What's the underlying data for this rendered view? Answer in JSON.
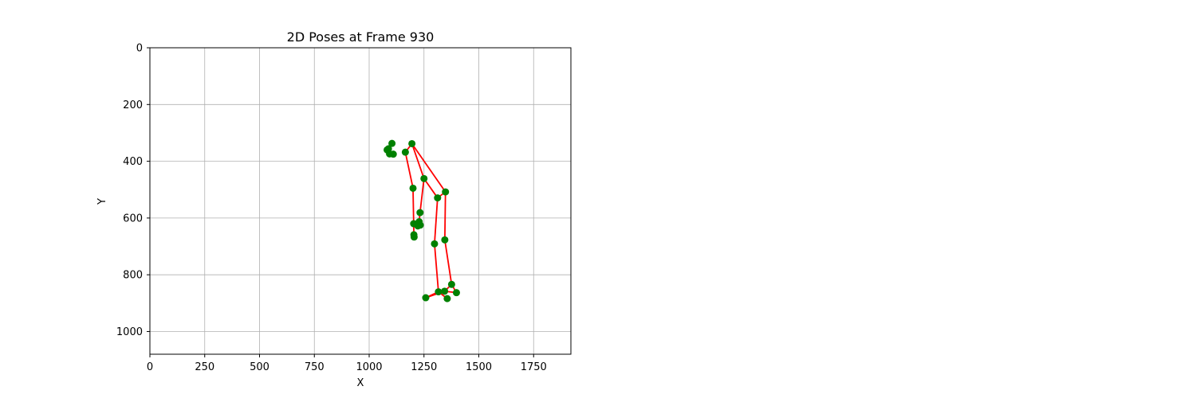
{
  "chart_data": {
    "type": "scatter",
    "title": "2D Poses at Frame 930",
    "xlabel": "X",
    "ylabel": "Y",
    "xlim": [
      0,
      1920
    ],
    "ylim": [
      1080,
      0
    ],
    "y_inverted": true,
    "grid": true,
    "x_ticks": [
      0,
      250,
      500,
      750,
      1000,
      1250,
      1500,
      1750
    ],
    "y_ticks": [
      0,
      200,
      400,
      600,
      800,
      1000
    ],
    "point_color": "#008000",
    "line_color": "#ff0000",
    "points": [
      {
        "x": 1195,
        "y": 338
      },
      {
        "x": 1104,
        "y": 337
      },
      {
        "x": 1088,
        "y": 356
      },
      {
        "x": 1082,
        "y": 360
      },
      {
        "x": 1093,
        "y": 374
      },
      {
        "x": 1110,
        "y": 375
      },
      {
        "x": 1165,
        "y": 368
      },
      {
        "x": 1250,
        "y": 461
      },
      {
        "x": 1348,
        "y": 508
      },
      {
        "x": 1312,
        "y": 529
      },
      {
        "x": 1200,
        "y": 495
      },
      {
        "x": 1232,
        "y": 581
      },
      {
        "x": 1228,
        "y": 613
      },
      {
        "x": 1233,
        "y": 625
      },
      {
        "x": 1222,
        "y": 628
      },
      {
        "x": 1203,
        "y": 620
      },
      {
        "x": 1204,
        "y": 659
      },
      {
        "x": 1205,
        "y": 667
      },
      {
        "x": 1345,
        "y": 677
      },
      {
        "x": 1298,
        "y": 691
      },
      {
        "x": 1376,
        "y": 834
      },
      {
        "x": 1398,
        "y": 863
      },
      {
        "x": 1344,
        "y": 858
      },
      {
        "x": 1316,
        "y": 860
      },
      {
        "x": 1258,
        "y": 881
      },
      {
        "x": 1356,
        "y": 884
      }
    ],
    "skeleton_segments": [
      [
        [
          1195,
          338
        ],
        [
          1165,
          368
        ]
      ],
      [
        [
          1195,
          338
        ],
        [
          1348,
          508
        ]
      ],
      [
        [
          1195,
          338
        ],
        [
          1250,
          461
        ]
      ],
      [
        [
          1165,
          368
        ],
        [
          1200,
          495
        ]
      ],
      [
        [
          1250,
          461
        ],
        [
          1232,
          581
        ]
      ],
      [
        [
          1232,
          581
        ],
        [
          1228,
          613
        ]
      ],
      [
        [
          1228,
          613
        ],
        [
          1233,
          625
        ]
      ],
      [
        [
          1200,
          495
        ],
        [
          1203,
          620
        ]
      ],
      [
        [
          1203,
          620
        ],
        [
          1204,
          659
        ]
      ],
      [
        [
          1348,
          508
        ],
        [
          1312,
          529
        ]
      ],
      [
        [
          1312,
          529
        ],
        [
          1250,
          461
        ]
      ],
      [
        [
          1348,
          508
        ],
        [
          1345,
          677
        ]
      ],
      [
        [
          1312,
          529
        ],
        [
          1298,
          691
        ]
      ],
      [
        [
          1345,
          677
        ],
        [
          1376,
          834
        ]
      ],
      [
        [
          1376,
          834
        ],
        [
          1398,
          863
        ]
      ],
      [
        [
          1398,
          863
        ],
        [
          1344,
          858
        ]
      ],
      [
        [
          1298,
          691
        ],
        [
          1316,
          860
        ]
      ],
      [
        [
          1316,
          860
        ],
        [
          1356,
          884
        ]
      ],
      [
        [
          1316,
          860
        ],
        [
          1258,
          881
        ]
      ],
      [
        [
          1258,
          881
        ],
        [
          1344,
          858
        ]
      ],
      [
        [
          1344,
          858
        ],
        [
          1376,
          834
        ]
      ]
    ]
  }
}
